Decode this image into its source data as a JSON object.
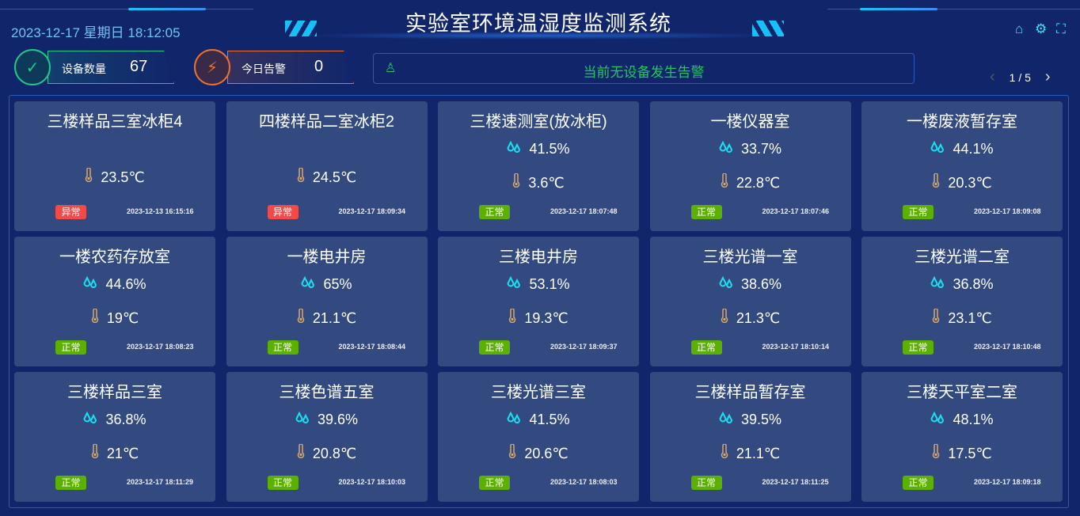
{
  "header": {
    "title": "实验室环境温湿度监测系统",
    "datetime": "2023-12-17 星期日 18:12:05"
  },
  "stats": [
    {
      "label": "设备数量",
      "value": "67",
      "color": "#1ec88a",
      "icon": "check-cycle-icon"
    },
    {
      "label": "今日告警",
      "value": "0",
      "color": "#f0702a",
      "icon": "alarm-light-icon"
    }
  ],
  "alarm": {
    "text": "当前无设备发生告警",
    "color": "#1ec85a"
  },
  "pager": {
    "text": "1 / 5"
  },
  "status_colors": {
    "正常": "#5cb000",
    "异常": "#f04a4a"
  },
  "devices": [
    {
      "name": "三楼样品三室冰柜4",
      "humidity": null,
      "temp": "23.5℃",
      "status": "异常",
      "time": "2023-12-13 16:15:16"
    },
    {
      "name": "四楼样品二室冰柜2",
      "humidity": null,
      "temp": "24.5℃",
      "status": "异常",
      "time": "2023-12-17 18:09:34"
    },
    {
      "name": "三楼速测室(放冰柜)",
      "humidity": "41.5%",
      "temp": "3.6℃",
      "status": "正常",
      "time": "2023-12-17 18:07:48"
    },
    {
      "name": "一楼仪器室",
      "humidity": "33.7%",
      "temp": "22.8℃",
      "status": "正常",
      "time": "2023-12-17 18:07:46"
    },
    {
      "name": "一楼废液暂存室",
      "humidity": "44.1%",
      "temp": "20.3℃",
      "status": "正常",
      "time": "2023-12-17 18:09:08"
    },
    {
      "name": "一楼农药存放室",
      "humidity": "44.6%",
      "temp": "19℃",
      "status": "正常",
      "time": "2023-12-17 18:08:23"
    },
    {
      "name": "一楼电井房",
      "humidity": "65%",
      "temp": "21.1℃",
      "status": "正常",
      "time": "2023-12-17 18:08:44"
    },
    {
      "name": "三楼电井房",
      "humidity": "53.1%",
      "temp": "19.3℃",
      "status": "正常",
      "time": "2023-12-17 18:09:37"
    },
    {
      "name": "三楼光谱一室",
      "humidity": "38.6%",
      "temp": "21.3℃",
      "status": "正常",
      "time": "2023-12-17 18:10:14"
    },
    {
      "name": "三楼光谱二室",
      "humidity": "36.8%",
      "temp": "23.1℃",
      "status": "正常",
      "time": "2023-12-17 18:10:48"
    },
    {
      "name": "三楼样品三室",
      "humidity": "36.8%",
      "temp": "21℃",
      "status": "正常",
      "time": "2023-12-17 18:11:29"
    },
    {
      "name": "三楼色谱五室",
      "humidity": "39.6%",
      "temp": "20.8℃",
      "status": "正常",
      "time": "2023-12-17 18:10:03"
    },
    {
      "name": "三楼光谱三室",
      "humidity": "41.5%",
      "temp": "20.6℃",
      "status": "正常",
      "time": "2023-12-17 18:08:03"
    },
    {
      "name": "三楼样品暂存室",
      "humidity": "39.5%",
      "temp": "21.1℃",
      "status": "正常",
      "time": "2023-12-17 18:11:25"
    },
    {
      "name": "三楼天平室二室",
      "humidity": "48.1%",
      "temp": "17.5℃",
      "status": "正常",
      "time": "2023-12-17 18:09:18"
    }
  ]
}
